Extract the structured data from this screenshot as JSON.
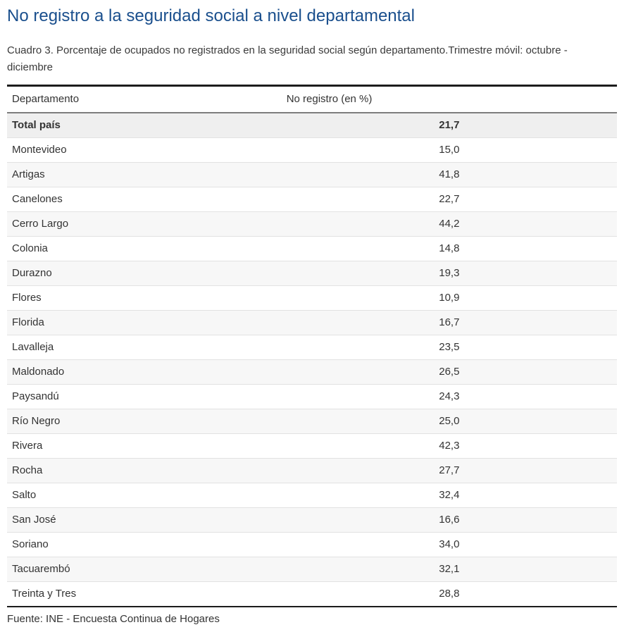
{
  "page": {
    "title": "No registro a la seguridad social a nivel departamental",
    "subtitle": "Cuadro 3. Porcentaje de ocupados no registrados en la seguridad social según departamento.Trimestre móvil: octubre - diciembre",
    "source": "Fuente: INE - Encuesta Continua de Hogares"
  },
  "colors": {
    "title_blue": "#1a4f8d",
    "text": "#333333",
    "total_row_bg": "#efefef",
    "stripe_bg": "#f7f7f7",
    "table_border_dark": "#1c1c1c",
    "header_separator": "#7d7d7d"
  },
  "chart_data": {
    "type": "table",
    "title": "Cuadro 3. Porcentaje de ocupados no registrados en la seguridad social según departamento.Trimestre móvil: octubre - diciembre",
    "columns": [
      "Departamento",
      "No registro (en %)"
    ],
    "rows": [
      [
        "Total país",
        "21,7"
      ],
      [
        "Montevideo",
        "15,0"
      ],
      [
        "Artigas",
        "41,8"
      ],
      [
        "Canelones",
        "22,7"
      ],
      [
        "Cerro Largo",
        "44,2"
      ],
      [
        "Colonia",
        "14,8"
      ],
      [
        "Durazno",
        "19,3"
      ],
      [
        "Flores",
        "10,9"
      ],
      [
        "Florida",
        "16,7"
      ],
      [
        "Lavalleja",
        "23,5"
      ],
      [
        "Maldonado",
        "26,5"
      ],
      [
        "Paysandú",
        "24,3"
      ],
      [
        "Río Negro",
        "25,0"
      ],
      [
        "Rivera",
        "42,3"
      ],
      [
        "Rocha",
        "27,7"
      ],
      [
        "Salto",
        "32,4"
      ],
      [
        "San José",
        "16,6"
      ],
      [
        "Soriano",
        "34,0"
      ],
      [
        "Tacuarembó",
        "32,1"
      ],
      [
        "Treinta y Tres",
        "28,8"
      ]
    ],
    "values_numeric": [
      21.7,
      15.0,
      41.8,
      22.7,
      44.2,
      14.8,
      19.3,
      10.9,
      16.7,
      23.5,
      26.5,
      24.3,
      25.0,
      42.3,
      27.7,
      32.4,
      16.6,
      34.0,
      32.1,
      28.8
    ],
    "notes": "Total país row is emphasized (bold, darker background); odd rows have light gray striping."
  }
}
